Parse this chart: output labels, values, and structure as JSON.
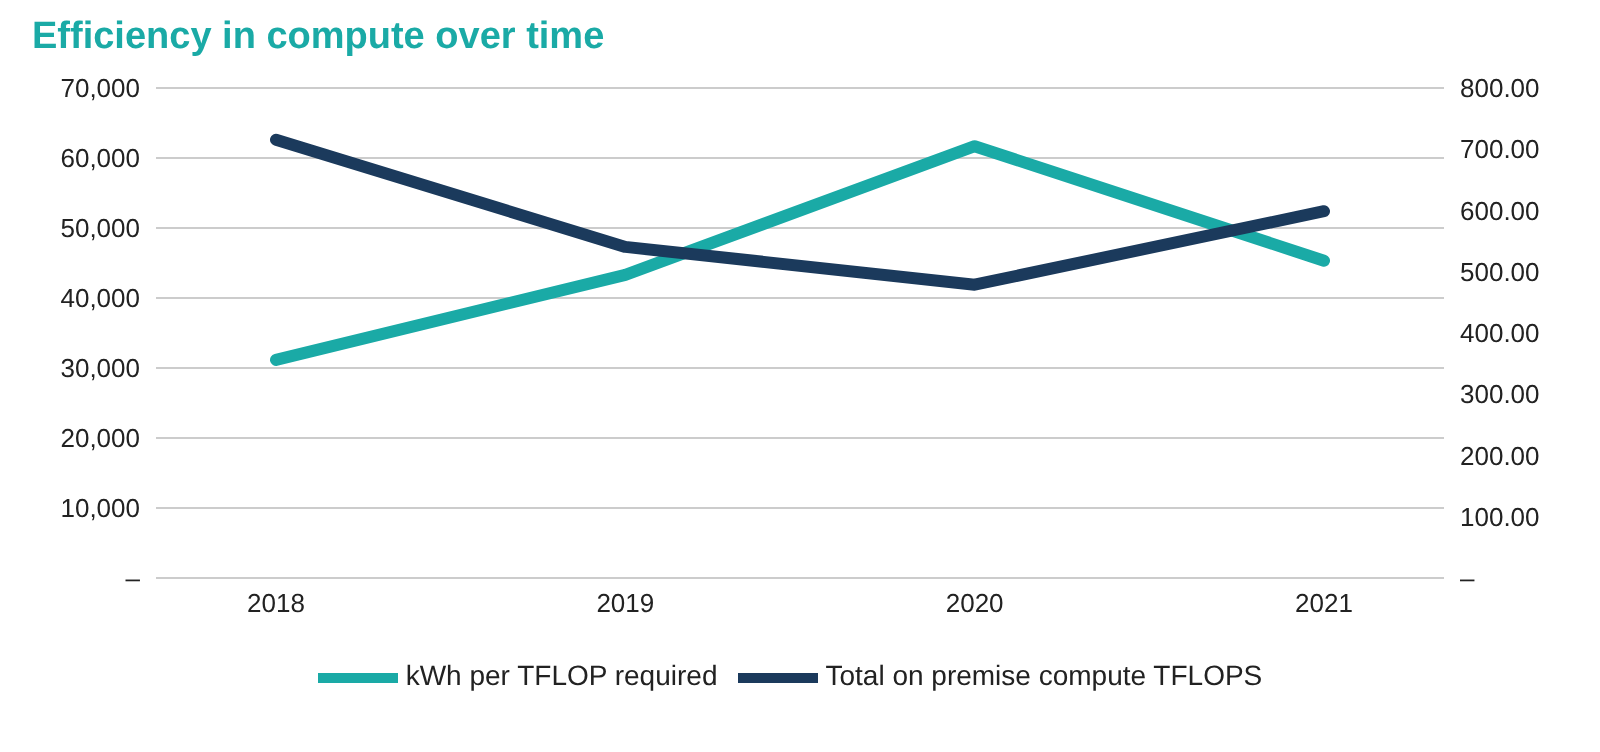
{
  "chart_data": {
    "type": "line",
    "title": "Efficiency in compute over time",
    "categories": [
      "2018",
      "2019",
      "2020",
      "2021"
    ],
    "series": [
      {
        "name": "kWh per TFLOP required",
        "color": "#1aaaa6",
        "values": [
          356,
          495,
          705,
          518
        ],
        "axis": "y2"
      },
      {
        "name": "Total on premise compute TFLOPS",
        "color": "#1b3a5c",
        "values": [
          62600,
          47300,
          41900,
          52400
        ]
      }
    ],
    "ylim": [
      0,
      70000
    ],
    "yticks": [
      {
        "value": 0,
        "label": "–"
      },
      {
        "value": 10000,
        "label": "10,000"
      },
      {
        "value": 20000,
        "label": "20,000"
      },
      {
        "value": 30000,
        "label": "30,000"
      },
      {
        "value": 40000,
        "label": "40,000"
      },
      {
        "value": 50000,
        "label": "50,000"
      },
      {
        "value": 60000,
        "label": "60,000"
      },
      {
        "value": 70000,
        "label": "70,000"
      }
    ],
    "y2lim": [
      0,
      800
    ],
    "y2ticks": [
      {
        "value": 0,
        "label": "–"
      },
      {
        "value": 100,
        "label": "100.00"
      },
      {
        "value": 200,
        "label": "200.00"
      },
      {
        "value": 300,
        "label": "300.00"
      },
      {
        "value": 400,
        "label": "400.00"
      },
      {
        "value": 500,
        "label": "500.00"
      },
      {
        "value": 600,
        "label": "600.00"
      },
      {
        "value": 700,
        "label": "700.00"
      },
      {
        "value": 800,
        "label": "800.00"
      }
    ],
    "grid": "y",
    "legend": "bottom",
    "marker": "none",
    "line_style": "solid"
  }
}
